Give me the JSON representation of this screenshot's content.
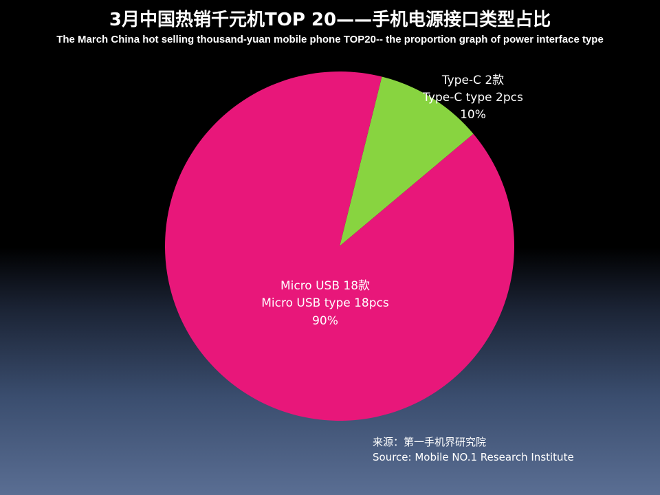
{
  "title": "3月中国热销千元机TOP 20——手机电源接口类型占比",
  "subtitle": "The March China hot selling thousand-yuan mobile phone TOP20-- the proportion graph of power interface type",
  "source": {
    "line1": "来源：第一手机界研究院",
    "line2": "Source: Mobile NO.1 Research Institute"
  },
  "chart_data": {
    "type": "pie",
    "title": "3月中国热销千元机TOP 20——手机电源接口类型占比",
    "subtitle": "The March China hot selling thousand-yuan mobile phone TOP20-- the proportion graph of power interface type",
    "slices": [
      {
        "name": "Type-C",
        "value": 2,
        "percent": 10,
        "color": "#88d440",
        "labels": [
          "Type-C  2款",
          "Type-C type  2pcs",
          "10%"
        ]
      },
      {
        "name": "Micro USB",
        "value": 18,
        "percent": 90,
        "color": "#e8177a",
        "labels": [
          "Micro USB 18款",
          "Micro USB type 18pcs",
          "90%"
        ]
      }
    ],
    "legend": "none"
  }
}
